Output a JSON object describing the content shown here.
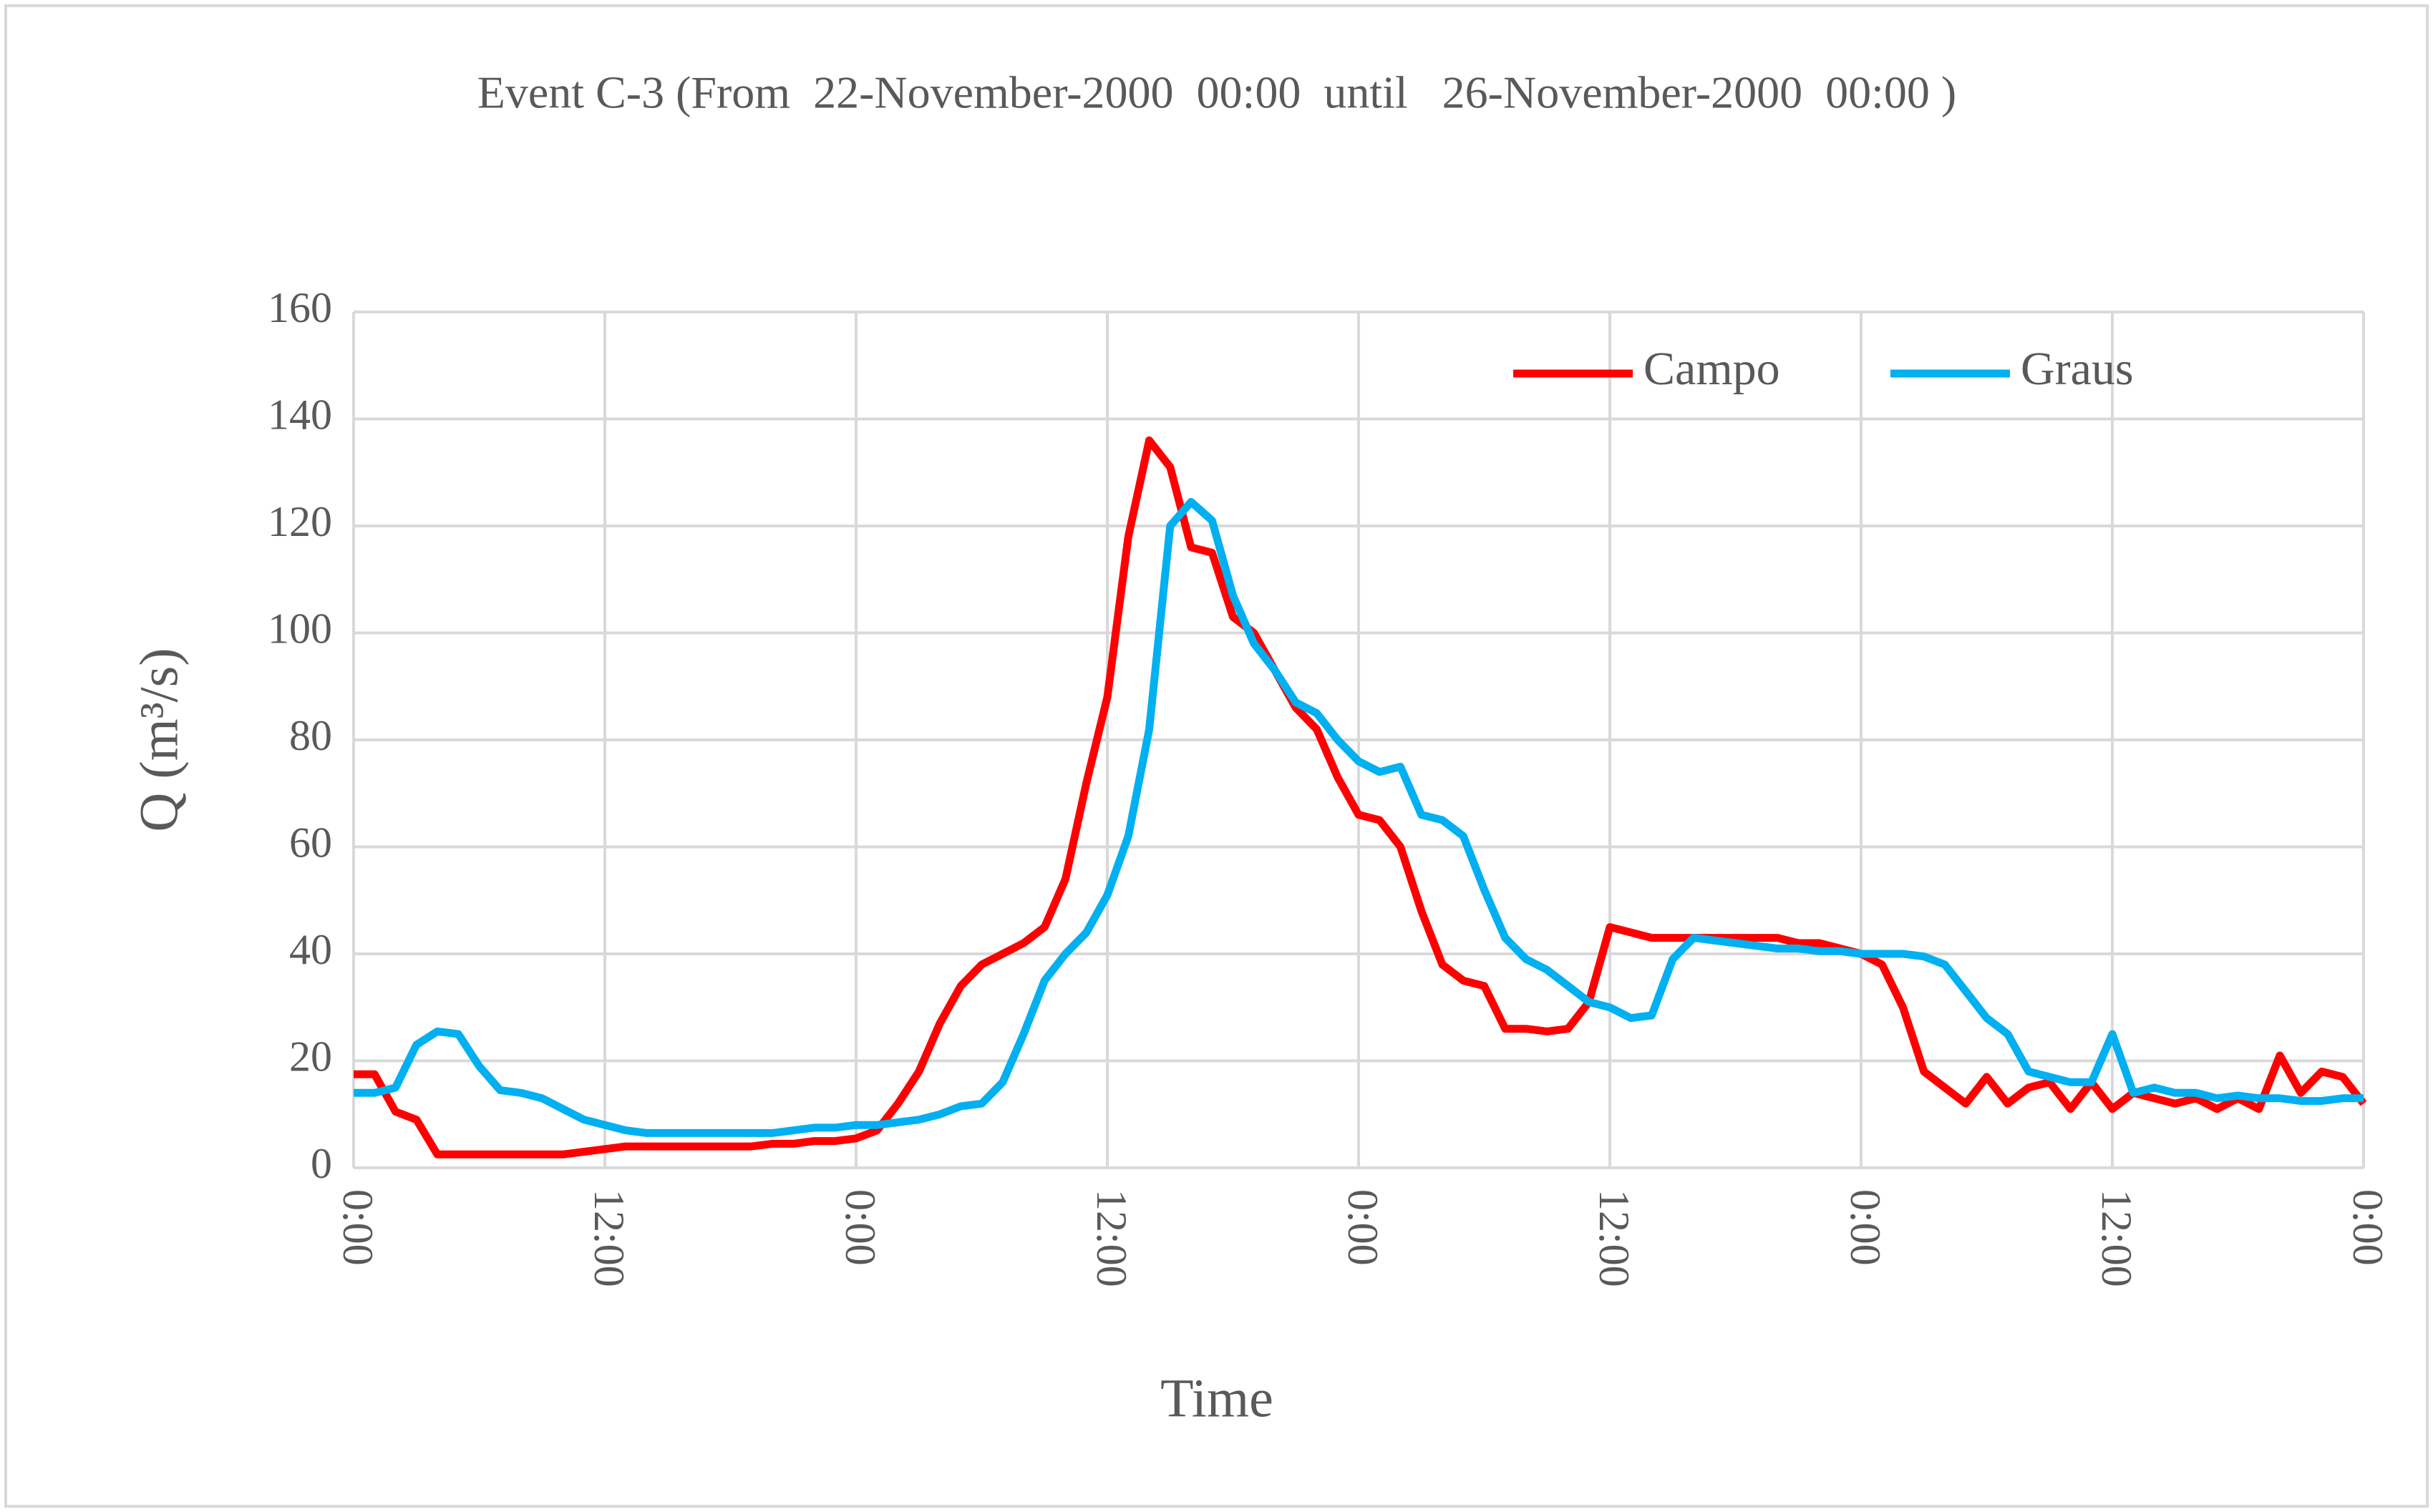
{
  "chart_data": {
    "type": "line",
    "title": "Event C-3 (From  22-November-2000  00:00  until   26-November-2000  00:00 )",
    "x_label": "Time",
    "y_label": "Q (m³/s)",
    "x": [
      0,
      1,
      2,
      3,
      4,
      5,
      6,
      7,
      8,
      9,
      10,
      11,
      12,
      13,
      14,
      15,
      16,
      17,
      18,
      19,
      20,
      21,
      22,
      23,
      24,
      25,
      26,
      27,
      28,
      29,
      30,
      31,
      32,
      33,
      34,
      35,
      36,
      37,
      38,
      39,
      40,
      41,
      42,
      43,
      44,
      45,
      46,
      47,
      48,
      49,
      50,
      51,
      52,
      53,
      54,
      55,
      56,
      57,
      58,
      59,
      60,
      61,
      62,
      63,
      64,
      65,
      66,
      67,
      68,
      69,
      70,
      71,
      72,
      73,
      74,
      75,
      76,
      77,
      78,
      79,
      80,
      81,
      82,
      83,
      84,
      85,
      86,
      87,
      88,
      89,
      90,
      91,
      92,
      93,
      94,
      95,
      96
    ],
    "series": [
      {
        "name": "Campo",
        "color": "#ff0000",
        "values": [
          17.5,
          17.5,
          10.5,
          9,
          2.5,
          2.5,
          2.5,
          2.5,
          2.5,
          2.5,
          2.5,
          3,
          3.5,
          4,
          4,
          4,
          4,
          4,
          4,
          4,
          4.5,
          4.5,
          5,
          5,
          5.5,
          7,
          12,
          18,
          27,
          34,
          38,
          40,
          42,
          45,
          54,
          72,
          88,
          118,
          136,
          131,
          116,
          115,
          103,
          100,
          93,
          86,
          82,
          73,
          66,
          65,
          60,
          48,
          38,
          35,
          34,
          26,
          26,
          25.5,
          26,
          31,
          45,
          44,
          43,
          43,
          43,
          43,
          43,
          43,
          43,
          42,
          42,
          41,
          40,
          38,
          30,
          18,
          15,
          12,
          17,
          12,
          15,
          16,
          11,
          16,
          11,
          14,
          13,
          12,
          13,
          11,
          13,
          11,
          21,
          14,
          18,
          17,
          12
        ]
      },
      {
        "name": "Graus",
        "color": "#00b0f0",
        "values": [
          14,
          14,
          15,
          23,
          25.5,
          25,
          19,
          14.5,
          14,
          13,
          11,
          9,
          8,
          7,
          6.5,
          6.5,
          6.5,
          6.5,
          6.5,
          6.5,
          6.5,
          7,
          7.5,
          7.5,
          8,
          8,
          8.5,
          9,
          10,
          11.5,
          12,
          16,
          25,
          35,
          40,
          44,
          51,
          62,
          82,
          120,
          124.5,
          121,
          107,
          98,
          93,
          87,
          85,
          80,
          76,
          74,
          75,
          66,
          65,
          62,
          52,
          43,
          39,
          37,
          34,
          31,
          30,
          28,
          28.5,
          39,
          43,
          42.5,
          42,
          41.5,
          41,
          41,
          40.5,
          40.5,
          40,
          40,
          40,
          39.5,
          38,
          33,
          28,
          25,
          18,
          17,
          16,
          16,
          25,
          14,
          15,
          14,
          14,
          13,
          13.5,
          13,
          13,
          12.5,
          12.5,
          13,
          13
        ]
      }
    ],
    "xlim": [
      0,
      96
    ],
    "xticks": [
      {
        "value": 0,
        "label": "0:00"
      },
      {
        "value": 12,
        "label": "12:00"
      },
      {
        "value": 24,
        "label": "0:00"
      },
      {
        "value": 36,
        "label": "12:00"
      },
      {
        "value": 48,
        "label": "0:00"
      },
      {
        "value": 60,
        "label": "12:00"
      },
      {
        "value": 72,
        "label": "0:00"
      },
      {
        "value": 84,
        "label": "12:00"
      },
      {
        "value": 96,
        "label": "0:00"
      }
    ],
    "ylim": [
      0,
      160
    ],
    "yticks": [
      0,
      20,
      40,
      60,
      80,
      100,
      120,
      140,
      160
    ],
    "grid": true,
    "legend": "upper right"
  }
}
